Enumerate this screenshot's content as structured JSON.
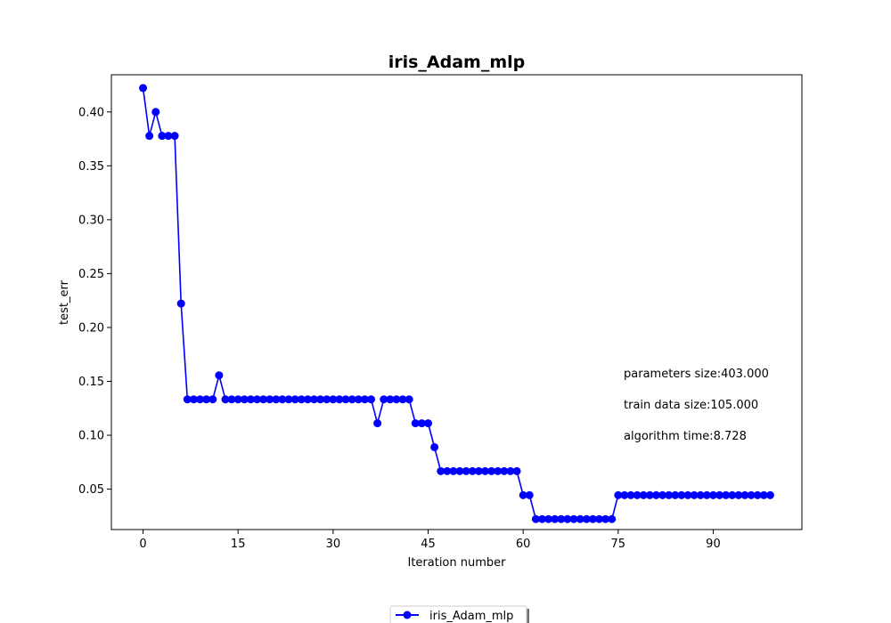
{
  "chart_data": {
    "type": "line",
    "title": "iris_Adam_mlp",
    "xlabel": "Iteration number",
    "ylabel": "test_err",
    "xlim": [
      -5,
      104
    ],
    "ylim": [
      0.0125,
      0.4345
    ],
    "xticks": [
      0,
      15,
      30,
      45,
      60,
      75,
      90
    ],
    "yticks": [
      0.05,
      0.1,
      0.15,
      0.2,
      0.25,
      0.3,
      0.35,
      0.4
    ],
    "ytick_labels": [
      "0.05",
      "0.10",
      "0.15",
      "0.20",
      "0.25",
      "0.30",
      "0.35",
      "0.40"
    ],
    "grid": false,
    "legend_position": "bottom-center",
    "series": [
      {
        "name": "iris_Adam_mlp",
        "color": "#0000ff",
        "marker": "circle",
        "x": [
          0,
          1,
          2,
          3,
          4,
          5,
          6,
          7,
          8,
          9,
          10,
          11,
          12,
          13,
          14,
          15,
          16,
          17,
          18,
          19,
          20,
          21,
          22,
          23,
          24,
          25,
          26,
          27,
          28,
          29,
          30,
          31,
          32,
          33,
          34,
          35,
          36,
          37,
          38,
          39,
          40,
          41,
          42,
          43,
          44,
          45,
          46,
          47,
          48,
          49,
          50,
          51,
          52,
          53,
          54,
          55,
          56,
          57,
          58,
          59,
          60,
          61,
          62,
          63,
          64,
          65,
          66,
          67,
          68,
          69,
          70,
          71,
          72,
          73,
          74,
          75,
          76,
          77,
          78,
          79,
          80,
          81,
          82,
          83,
          84,
          85,
          86,
          87,
          88,
          89,
          90,
          91,
          92,
          93,
          94,
          95,
          96,
          97,
          98,
          99
        ],
        "y": [
          0.4222,
          0.3778,
          0.4,
          0.3778,
          0.3778,
          0.3778,
          0.2222,
          0.1333,
          0.1333,
          0.1333,
          0.1333,
          0.1333,
          0.1556,
          0.1333,
          0.1333,
          0.1333,
          0.1333,
          0.1333,
          0.1333,
          0.1333,
          0.1333,
          0.1333,
          0.1333,
          0.1333,
          0.1333,
          0.1333,
          0.1333,
          0.1333,
          0.1333,
          0.1333,
          0.1333,
          0.1333,
          0.1333,
          0.1333,
          0.1333,
          0.1333,
          0.1333,
          0.1111,
          0.1333,
          0.1333,
          0.1333,
          0.1333,
          0.1333,
          0.1111,
          0.1111,
          0.1111,
          0.0889,
          0.0667,
          0.0667,
          0.0667,
          0.0667,
          0.0667,
          0.0667,
          0.0667,
          0.0667,
          0.0667,
          0.0667,
          0.0667,
          0.0667,
          0.0667,
          0.0444,
          0.0444,
          0.0222,
          0.0222,
          0.0222,
          0.0222,
          0.0222,
          0.0222,
          0.0222,
          0.0222,
          0.0222,
          0.0222,
          0.0222,
          0.0222,
          0.0222,
          0.0444,
          0.0444,
          0.0444,
          0.0444,
          0.0444,
          0.0444,
          0.0444,
          0.0444,
          0.0444,
          0.0444,
          0.0444,
          0.0444,
          0.0444,
          0.0444,
          0.0444,
          0.0444,
          0.0444,
          0.0444,
          0.0444,
          0.0444,
          0.0444,
          0.0444,
          0.0444,
          0.0444,
          0.0444
        ]
      }
    ],
    "annotations": [
      "parameters size:403.000",
      "train data size:105.000",
      "algorithm time:8.728"
    ]
  }
}
